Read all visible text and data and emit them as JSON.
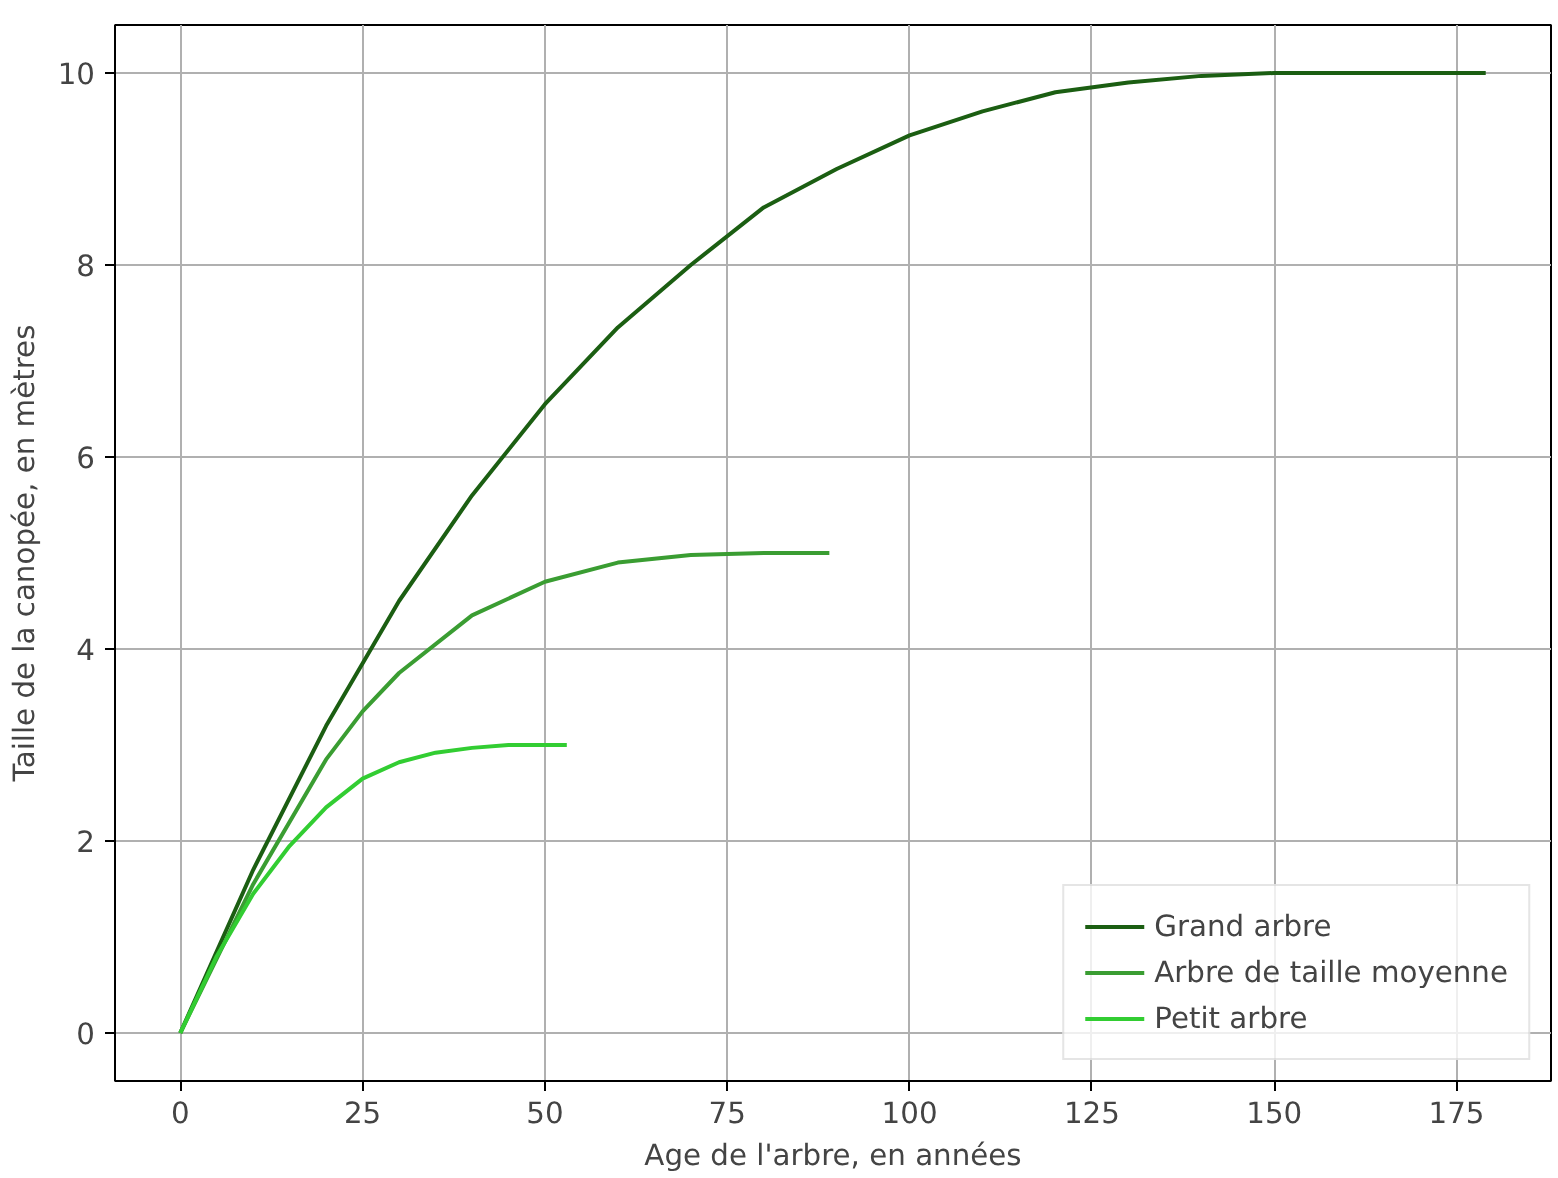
{
  "chart_data": {
    "type": "line",
    "xlabel": "Age de l'arbre, en années",
    "ylabel": "Taille de la canopée, en mètres",
    "xlim": [
      -8.95,
      187.95
    ],
    "ylim": [
      -0.5,
      10.5
    ],
    "xticks": [
      0,
      25,
      50,
      75,
      100,
      125,
      150,
      175
    ],
    "yticks": [
      0,
      2,
      4,
      6,
      8,
      10
    ],
    "grid": true,
    "legend": "bottom right",
    "line_style": "solid",
    "marker": "none",
    "series": [
      {
        "name": "Grand arbre",
        "color": "#1b5e12",
        "x": [
          0,
          10,
          20,
          30,
          40,
          50,
          60,
          70,
          80,
          90,
          100,
          110,
          120,
          130,
          140,
          150,
          160,
          170,
          179
        ],
        "values": [
          0,
          1.7,
          3.2,
          4.5,
          5.6,
          6.55,
          7.35,
          8.0,
          8.6,
          9.0,
          9.35,
          9.6,
          9.8,
          9.9,
          9.97,
          10.0,
          10.0,
          10.0,
          10.0
        ]
      },
      {
        "name": "Arbre de taille moyenne",
        "color": "#3a9d32",
        "x": [
          0,
          10,
          20,
          25,
          30,
          40,
          50,
          60,
          70,
          80,
          89
        ],
        "values": [
          0,
          1.55,
          2.85,
          3.35,
          3.75,
          4.35,
          4.7,
          4.9,
          4.98,
          5.0,
          5.0
        ]
      },
      {
        "name": "Petit arbre",
        "color": "#32cd32",
        "x": [
          0,
          5,
          10,
          15,
          20,
          25,
          30,
          35,
          40,
          45,
          53
        ],
        "values": [
          0,
          0.8,
          1.45,
          1.95,
          2.35,
          2.65,
          2.82,
          2.92,
          2.97,
          3.0,
          3.0
        ]
      }
    ]
  }
}
